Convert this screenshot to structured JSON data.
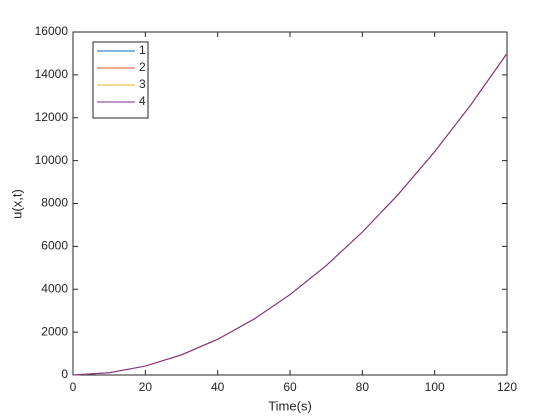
{
  "chart_data": {
    "type": "line",
    "xlabel": "Time(s)",
    "ylabel": "u(x,t)",
    "x": [
      0,
      10,
      20,
      30,
      40,
      50,
      60,
      70,
      80,
      90,
      100,
      110,
      120
    ],
    "series": [
      {
        "name": "1",
        "color": "#0072bd",
        "values": [
          0,
          104,
          417,
          938,
          1667,
          2604,
          3750,
          5104,
          6667,
          8438,
          10417,
          12604,
          15000
        ]
      },
      {
        "name": "2",
        "color": "#d95319",
        "values": [
          0,
          104,
          417,
          938,
          1667,
          2604,
          3750,
          5104,
          6667,
          8438,
          10417,
          12604,
          15000
        ]
      },
      {
        "name": "3",
        "color": "#edb120",
        "values": [
          0,
          104,
          417,
          938,
          1667,
          2604,
          3750,
          5104,
          6667,
          8438,
          10417,
          12604,
          15000
        ]
      },
      {
        "name": "4",
        "color": "#7e2f8e",
        "values": [
          0,
          104,
          417,
          938,
          1667,
          2604,
          3750,
          5104,
          6667,
          8438,
          10417,
          12604,
          15000
        ]
      }
    ],
    "xlim": [
      0,
      120
    ],
    "xticks": [
      0,
      20,
      40,
      60,
      80,
      100,
      120
    ],
    "ylim": [
      0,
      16000
    ],
    "yticks": [
      0,
      2000,
      4000,
      6000,
      8000,
      10000,
      12000,
      14000,
      16000
    ],
    "grid": false,
    "legend": "upper left"
  }
}
